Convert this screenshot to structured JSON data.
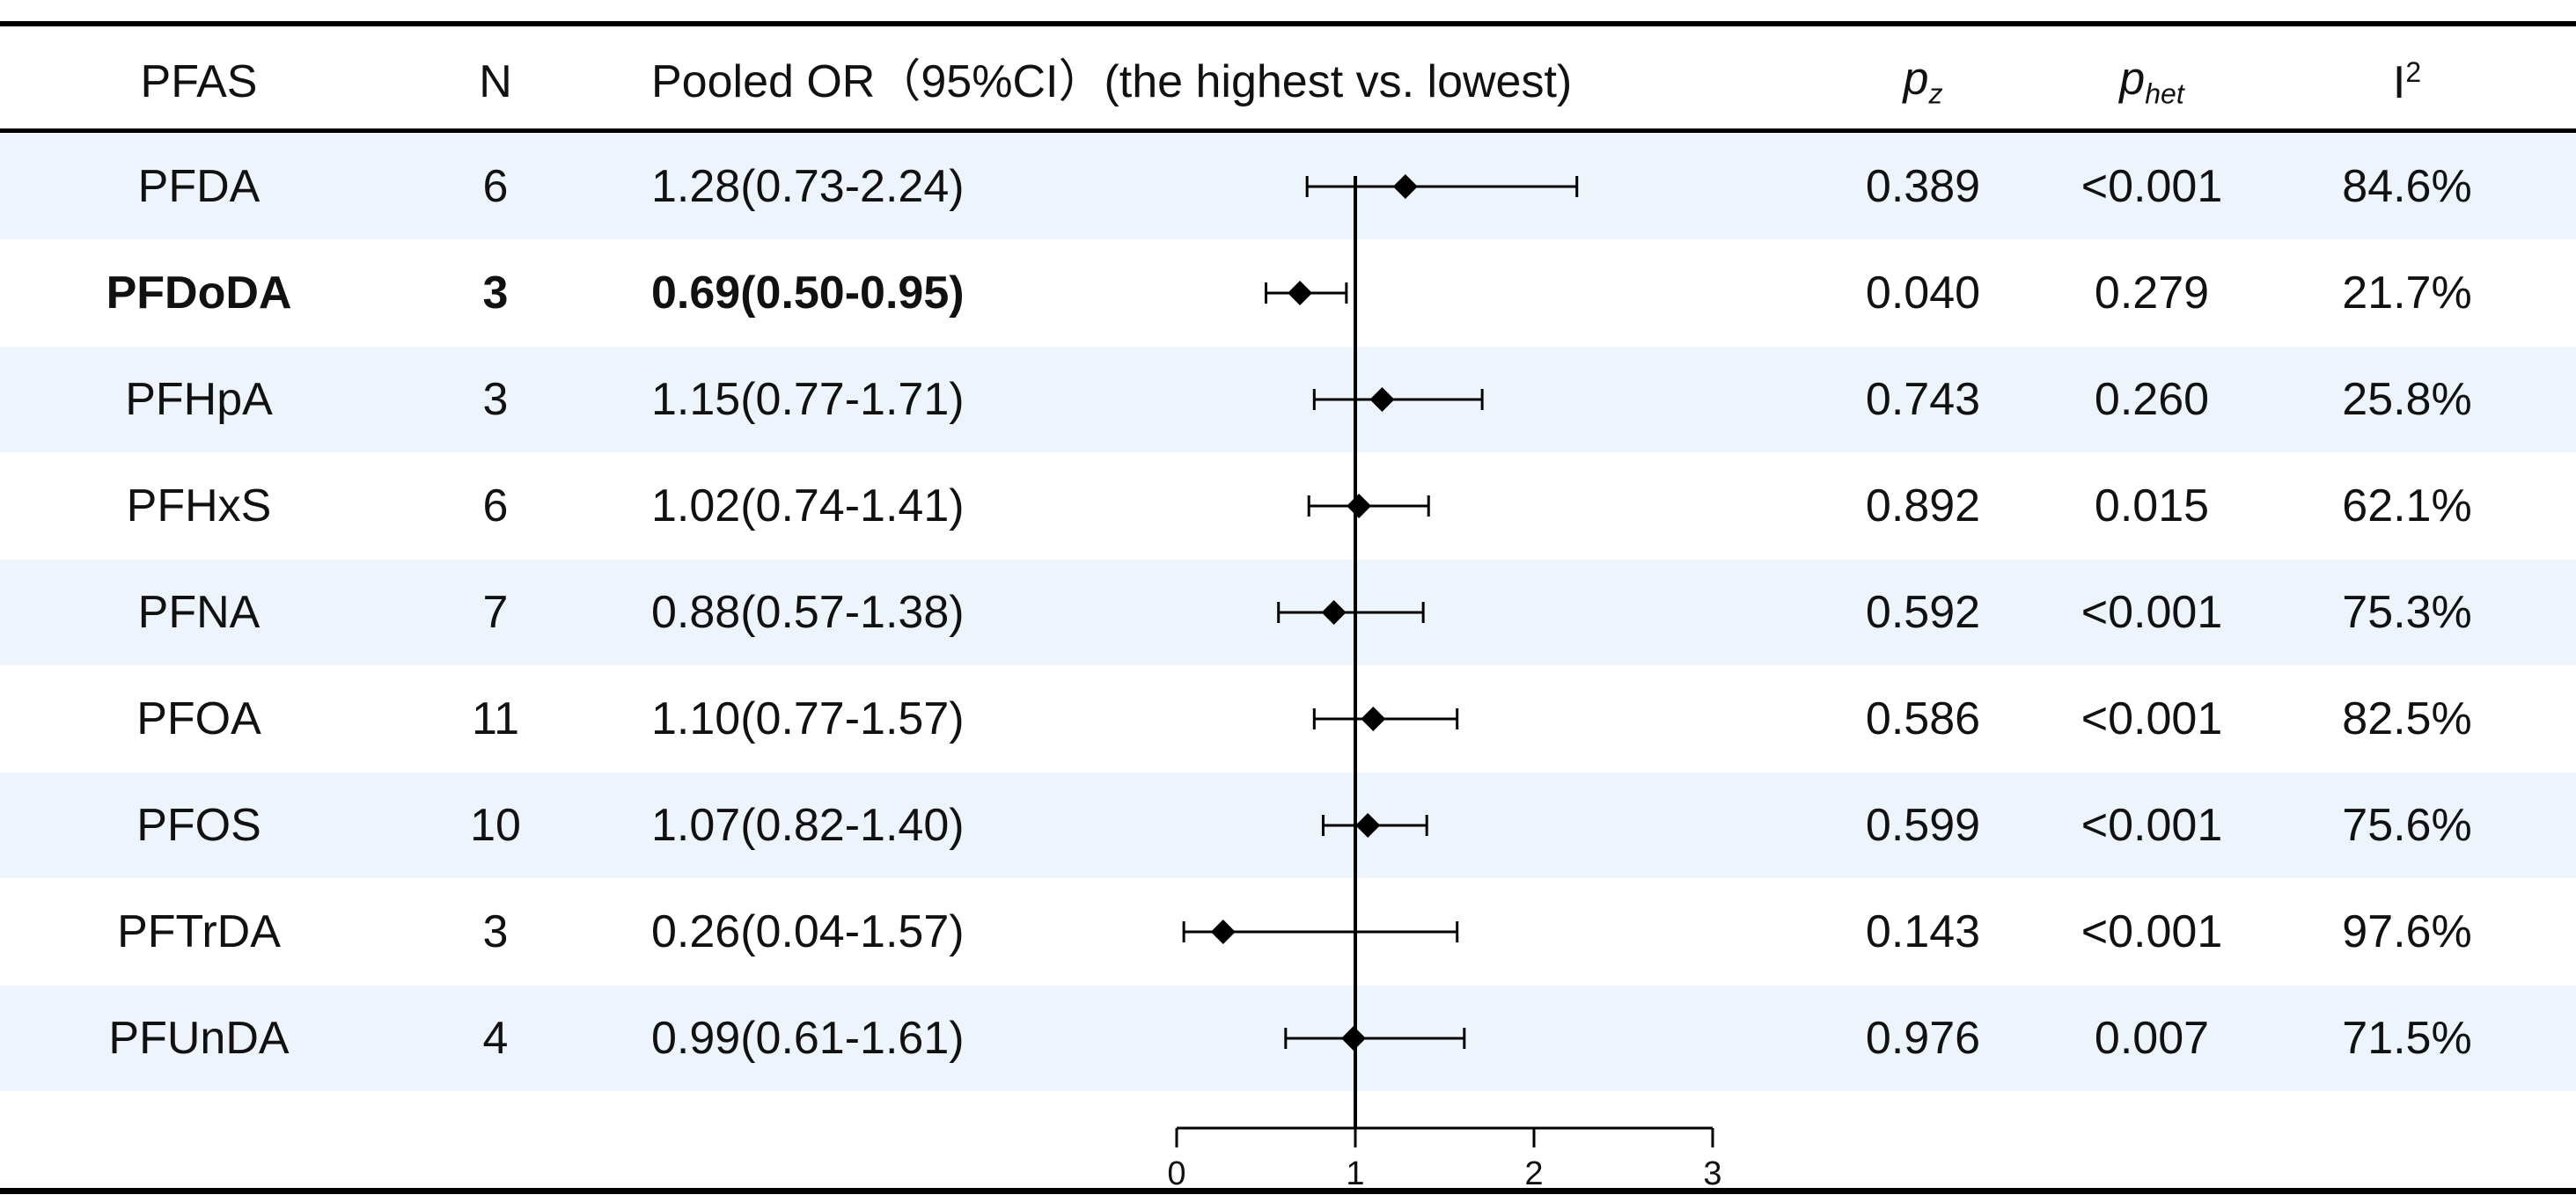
{
  "header": {
    "pfas": "PFAS",
    "n": "N",
    "or_label": "Pooled OR（95%CI）(the highest vs. lowest)",
    "pz_main": "p",
    "pz_sub": "z",
    "phet_main": "p",
    "phet_sub": "het",
    "i2_main": "I",
    "i2_sup": "2"
  },
  "rows": [
    {
      "pfas": "PFDA",
      "n": "6",
      "or_text": "1.28(0.73-2.24)",
      "pz": "0.389",
      "phet": "<0.001",
      "i2": "84.6%",
      "bold": false
    },
    {
      "pfas": "PFDoDA",
      "n": "3",
      "or_text": "0.69(0.50-0.95)",
      "pz": "0.040",
      "phet": "0.279",
      "i2": "21.7%",
      "bold": true
    },
    {
      "pfas": "PFHpA",
      "n": "3",
      "or_text": "1.15(0.77-1.71)",
      "pz": "0.743",
      "phet": "0.260",
      "i2": "25.8%",
      "bold": false
    },
    {
      "pfas": "PFHxS",
      "n": "6",
      "or_text": "1.02(0.74-1.41)",
      "pz": "0.892",
      "phet": "0.015",
      "i2": "62.1%",
      "bold": false
    },
    {
      "pfas": "PFNA",
      "n": "7",
      "or_text": "0.88(0.57-1.38)",
      "pz": "0.592",
      "phet": "<0.001",
      "i2": "75.3%",
      "bold": false
    },
    {
      "pfas": "PFOA",
      "n": "11",
      "or_text": "1.10(0.77-1.57)",
      "pz": "0.586",
      "phet": "<0.001",
      "i2": "82.5%",
      "bold": false
    },
    {
      "pfas": "PFOS",
      "n": "10",
      "or_text": "1.07(0.82-1.40)",
      "pz": "0.599",
      "phet": "<0.001",
      "i2": "75.6%",
      "bold": false
    },
    {
      "pfas": "PFTrDA",
      "n": "3",
      "or_text": "0.26(0.04-1.57)",
      "pz": "0.143",
      "phet": "<0.001",
      "i2": "97.6%",
      "bold": false
    },
    {
      "pfas": "PFUnDA",
      "n": "4",
      "or_text": "0.99(0.61-1.61)",
      "pz": "0.976",
      "phet": "0.007",
      "i2": "71.5%",
      "bold": false
    }
  ],
  "chart_data": {
    "type": "forest",
    "title": "Pooled OR（95%CI）(the highest vs. lowest)",
    "categories": [
      "PFDA",
      "PFDoDA",
      "PFHpA",
      "PFHxS",
      "PFNA",
      "PFOA",
      "PFOS",
      "PFTrDA",
      "PFUnDA"
    ],
    "or": [
      1.28,
      0.69,
      1.15,
      1.02,
      0.88,
      1.1,
      1.07,
      0.26,
      0.99
    ],
    "lower": [
      0.73,
      0.5,
      0.77,
      0.74,
      0.57,
      0.77,
      0.82,
      0.04,
      0.61
    ],
    "upper": [
      2.24,
      0.95,
      1.71,
      1.41,
      1.38,
      1.57,
      1.4,
      1.57,
      1.61
    ],
    "reference_line": 1,
    "xlim": [
      0,
      3
    ],
    "xticks": [
      "0",
      "1",
      "2",
      "3"
    ]
  }
}
